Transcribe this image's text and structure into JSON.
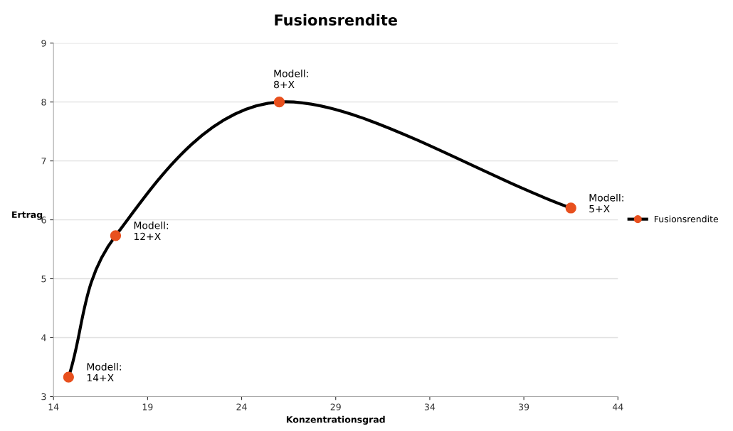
{
  "chart_data": {
    "type": "line",
    "title": "Fusionsrendite",
    "xlabel": "Konzentrationsgrad",
    "ylabel": "Ertrag",
    "x": [
      14.8,
      17.3,
      26,
      41.5
    ],
    "series": [
      {
        "name": "Fusionsrendite",
        "color": "#000000",
        "colors": [
          "#e8501e",
          "#e8501e",
          "#e8501e",
          "#e8501e"
        ],
        "values": [
          3.33,
          5.73,
          8.0,
          6.2
        ]
      }
    ],
    "xlim": [
      14,
      44
    ],
    "xticks": [
      14,
      19,
      24,
      29,
      34,
      39,
      44
    ],
    "ylim": [
      3,
      9
    ],
    "yticks": [
      3,
      4,
      5,
      6,
      7,
      8,
      9
    ],
    "grid": "y",
    "legend": "right",
    "marker": "circle",
    "line_style": "solid",
    "annotations": [
      {
        "text": "Modell:\n14+X",
        "x": 14.8,
        "y": 3.33
      },
      {
        "text": "Modell:\n12+X",
        "x": 17.3,
        "y": 5.73
      },
      {
        "text": "Modell:\n8+X",
        "x": 26,
        "y": 8.0
      },
      {
        "text": "Modell:\n5+X",
        "x": 41.5,
        "y": 6.2
      }
    ]
  }
}
